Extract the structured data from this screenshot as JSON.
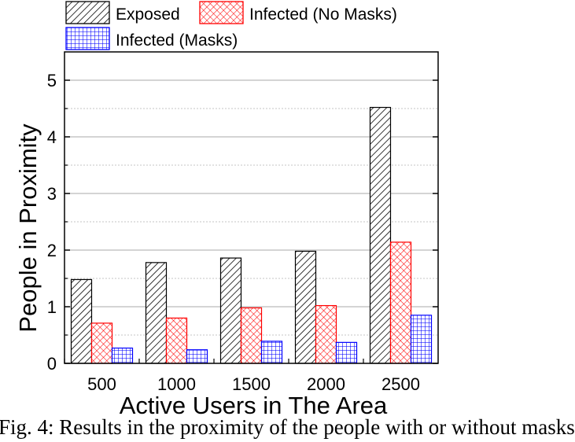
{
  "chart_data": {
    "type": "bar",
    "title": "",
    "xlabel": "Active Users in The Area",
    "ylabel": "People in Proximity",
    "categories": [
      "500",
      "1000",
      "1500",
      "2000",
      "2500"
    ],
    "series": [
      {
        "name": "Exposed",
        "values": [
          1.48,
          1.78,
          1.86,
          1.98,
          4.52
        ],
        "color": "#000000",
        "pattern": "diagonal-hatch"
      },
      {
        "name": "Infected (No Masks)",
        "values": [
          0.71,
          0.8,
          0.98,
          1.02,
          2.14
        ],
        "color": "#ff0000",
        "pattern": "crosshatch"
      },
      {
        "name": "Infected (Masks)",
        "values": [
          0.27,
          0.24,
          0.39,
          0.37,
          0.85
        ],
        "color": "#0000ff",
        "pattern": "grid"
      }
    ],
    "ylim": [
      0,
      5.5
    ],
    "yticks": [
      "0",
      "1",
      "2",
      "3",
      "4",
      "5"
    ],
    "grid": true,
    "legend_position": "top"
  },
  "caption": "Fig. 4: Results in the proximity of the people with or without masks"
}
